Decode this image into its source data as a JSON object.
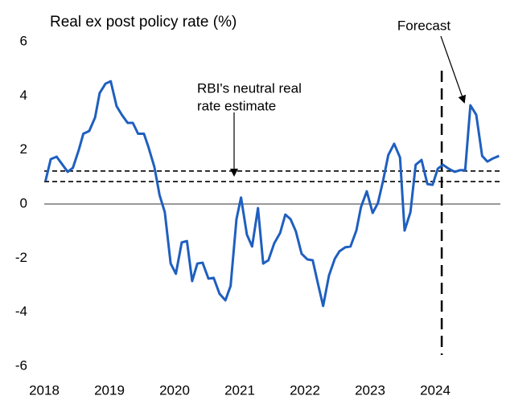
{
  "chart_data": {
    "type": "line",
    "title": "Real ex post policy rate (%)",
    "xlim": [
      2018,
      2025
    ],
    "xticks": [
      2018,
      2019,
      2020,
      2021,
      2022,
      2023,
      2024
    ],
    "ylim": [
      -6,
      6
    ],
    "yticks": [
      -6,
      -4,
      -2,
      0,
      2,
      4,
      6
    ],
    "x": [
      2018.02,
      2018.1,
      2018.19,
      2018.36,
      2018.44,
      2018.53,
      2018.6,
      2018.69,
      2018.78,
      2018.85,
      2018.94,
      2019.02,
      2019.11,
      2019.19,
      2019.28,
      2019.36,
      2019.44,
      2019.53,
      2019.6,
      2019.69,
      2019.77,
      2019.85,
      2019.94,
      2020.02,
      2020.11,
      2020.19,
      2020.27,
      2020.35,
      2020.43,
      2020.52,
      2020.6,
      2020.69,
      2020.78,
      2020.86,
      2020.95,
      2021.02,
      2021.11,
      2021.19,
      2021.28,
      2021.36,
      2021.44,
      2021.53,
      2021.62,
      2021.7,
      2021.78,
      2021.86,
      2021.95,
      2022.04,
      2022.12,
      2022.2,
      2022.28,
      2022.37,
      2022.46,
      2022.53,
      2022.62,
      2022.7,
      2022.79,
      2022.86,
      2022.95,
      2023.04,
      2023.12,
      2023.2,
      2023.28,
      2023.37,
      2023.46,
      2023.53,
      2023.62,
      2023.7,
      2023.79,
      2023.88,
      2023.96,
      2024.04,
      2024.12,
      2024.21,
      2024.3,
      2024.38,
      2024.46,
      2024.54,
      2024.63,
      2024.72,
      2024.8,
      2024.89,
      2024.98
    ],
    "series": [
      {
        "color": "#1f5fbf",
        "values": [
          0.86,
          1.66,
          1.75,
          1.19,
          1.34,
          2.0,
          2.6,
          2.7,
          3.2,
          4.1,
          4.45,
          4.54,
          3.62,
          3.3,
          3.0,
          3.0,
          2.6,
          2.6,
          2.1,
          1.37,
          0.33,
          -0.3,
          -2.2,
          -2.58,
          -1.42,
          -1.37,
          -2.85,
          -2.2,
          -2.17,
          -2.76,
          -2.73,
          -3.32,
          -3.56,
          -3.03,
          -0.56,
          0.24,
          -1.13,
          -1.57,
          -0.15,
          -2.2,
          -2.08,
          -1.45,
          -1.07,
          -0.39,
          -0.56,
          -1.0,
          -1.84,
          -2.05,
          -2.08,
          -2.94,
          -3.77,
          -2.64,
          -2.02,
          -1.75,
          -1.6,
          -1.57,
          -0.98,
          -0.12,
          0.47,
          -0.33,
          0.03,
          0.86,
          1.81,
          2.23,
          1.72,
          -0.98,
          -0.3,
          1.45,
          1.63,
          0.74,
          0.71,
          1.31,
          1.45,
          1.3,
          1.19,
          1.25,
          1.25,
          3.65,
          3.3,
          1.78,
          1.57,
          1.69,
          1.78
        ]
      }
    ],
    "reference_lines": [
      1.22,
      0.83
    ],
    "forecast_start": 2024.1,
    "annotations": {
      "forecast": "Forecast",
      "neutral": [
        "RBI's neutral real",
        "rate estimate"
      ]
    }
  }
}
